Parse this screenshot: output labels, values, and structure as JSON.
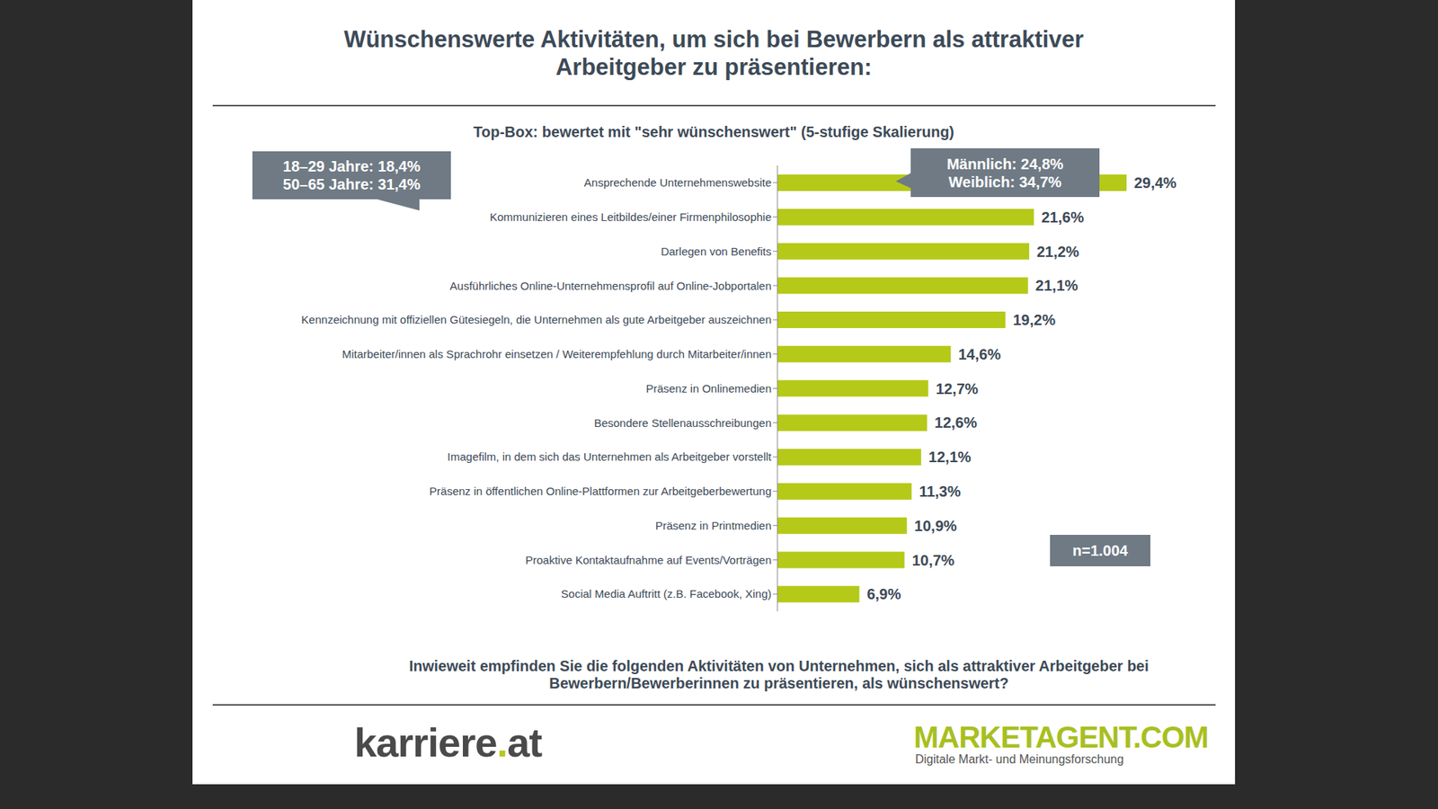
{
  "chart_data": {
    "type": "bar",
    "title": "Wünschenswerte Aktivitäten, um sich bei Bewerbern als attraktiver Arbeitgeber zu präsentieren:",
    "subtitle": "Top-Box: bewertet mit \"sehr wünschenswert\" (5-stufige Skalierung)",
    "orientation": "horizontal",
    "categories": [
      "Ansprechende Unternehmenswebsite",
      "Kommunizieren eines Leitbildes/einer Firmenphilosophie",
      "Darlegen von Benefits",
      "Ausführliches Online-Unternehmensprofil auf Online-Jobportalen",
      "Kennzeichnung mit offiziellen Gütesiegeln, die Unternehmen als gute Arbeitgeber auszeichnen",
      "Mitarbeiter/innen als Sprachrohr einsetzen / Weiterempfehlung durch Mitarbeiter/innen",
      "Präsenz in Onlinemedien",
      "Besondere Stellenausschreibungen",
      "Imagefilm, in dem sich das Unternehmen als Arbeitgeber vorstellt",
      "Präsenz in öffentlichen Online-Plattformen zur Arbeitgeberbewertung",
      "Präsenz in Printmedien",
      "Proaktive Kontaktaufnahme auf Events/Vorträgen",
      "Social Media Auftritt (z.B. Facebook, Xing)"
    ],
    "values": [
      29.4,
      21.6,
      21.2,
      21.1,
      19.2,
      14.6,
      12.7,
      12.6,
      12.1,
      11.3,
      10.9,
      10.7,
      6.9
    ],
    "value_labels": [
      "29,4%",
      "21,6%",
      "21,2%",
      "21,1%",
      "19,2%",
      "14,6%",
      "12,7%",
      "12,6%",
      "12,1%",
      "11,3%",
      "10,9%",
      "10,7%",
      "6,9%"
    ],
    "color": "#b5c918",
    "xlim": [
      0,
      35
    ],
    "data_labels": true,
    "tick_labels": "y",
    "annotations": [
      {
        "lines": [
          "18–29 Jahre: 18,4%",
          "50–65 Jahre: 31,4%"
        ]
      },
      {
        "lines": [
          "Männlich: 24,8%",
          "Weiblich: 34,7%"
        ]
      },
      {
        "lines": [
          "n=1.004"
        ]
      }
    ],
    "question": "Inwieweit empfinden Sie die folgenden Aktivitäten von Unternehmen, sich als attraktiver Arbeitgeber bei Bewerbern/Bewerberinnen zu präsentieren, als wünschenswert?",
    "brands": [
      "karriere.at",
      "MARKETAGENT.COM",
      "Digitale Markt- und Meinungsforschung"
    ]
  }
}
